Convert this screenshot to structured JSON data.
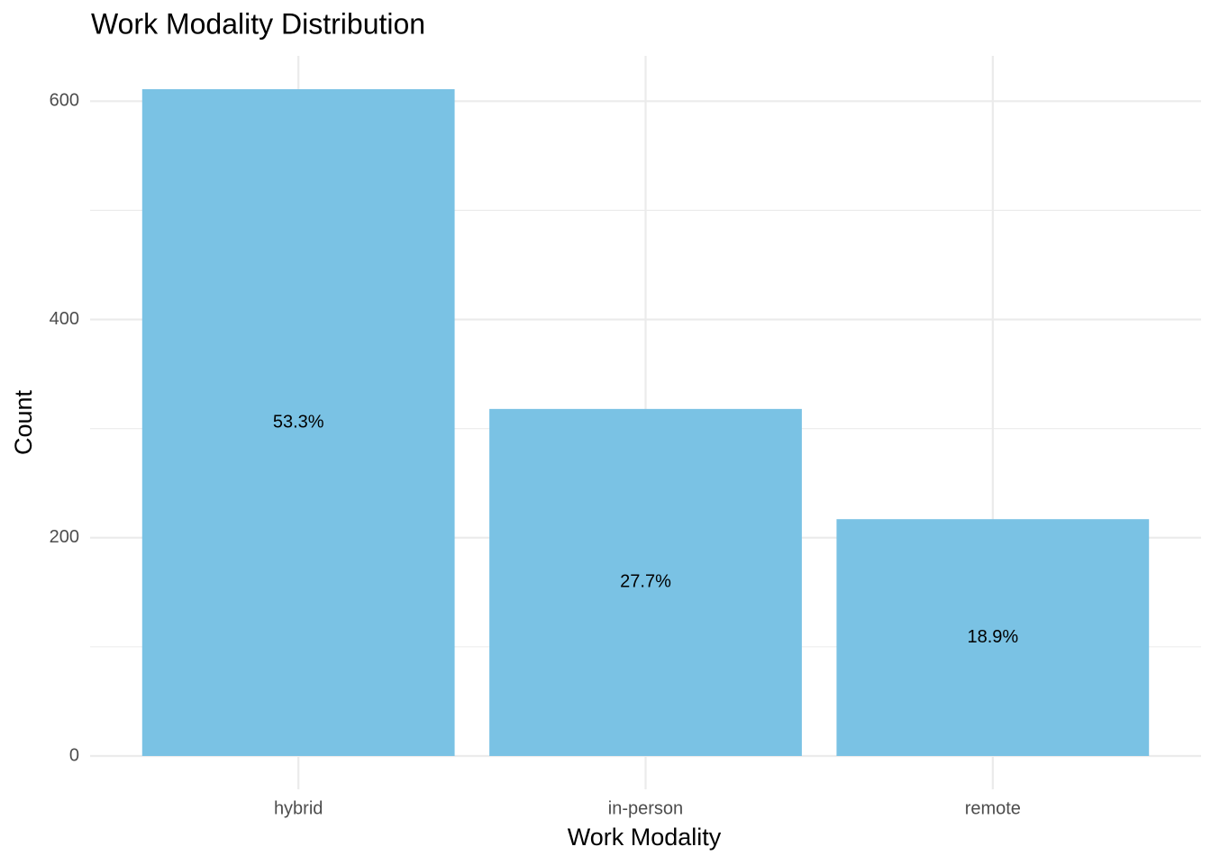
{
  "chart_data": {
    "type": "bar",
    "title": "Work Modality Distribution",
    "x_label": "Work Modality",
    "y_label": "Count",
    "categories": [
      "hybrid",
      "in-person",
      "remote"
    ],
    "values": [
      611,
      318,
      217
    ],
    "percent_labels": [
      "53.3%",
      "27.7%",
      "18.9%"
    ],
    "color": "#7AC2E4",
    "ylim": [
      -30.55,
      641.55
    ],
    "yticks": [
      0,
      200,
      400,
      600
    ],
    "minor_yticks": [
      100,
      300,
      500
    ],
    "grid": true
  }
}
